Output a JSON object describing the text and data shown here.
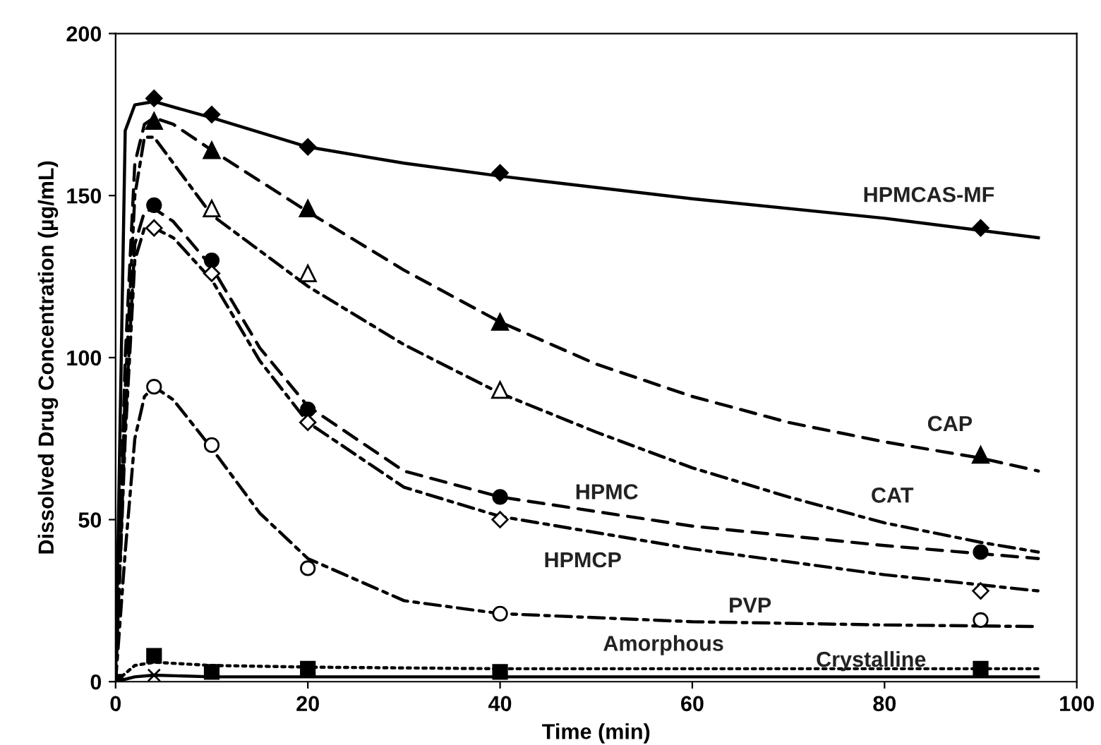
{
  "chart_data": {
    "type": "line",
    "xlabel": "Time (min)",
    "ylabel": "Dissolved Drug Concentration (µg/mL)",
    "xlim": [
      0,
      100
    ],
    "xticks": [
      0,
      20,
      40,
      60,
      80,
      100
    ],
    "ylim": [
      0,
      200
    ],
    "yticks": [
      0,
      50,
      100,
      150,
      200
    ],
    "grid": false,
    "legend": false,
    "series": [
      {
        "type": "scatter",
        "color": "#000000",
        "marker": "diamond",
        "x": [
          4,
          10,
          20,
          40,
          90
        ],
        "values": [
          180,
          175,
          165,
          157,
          140
        ]
      },
      {
        "type": "scatter",
        "color": "#000000",
        "marker": "triangle",
        "x": [
          4,
          10,
          20,
          40,
          90
        ],
        "values": [
          173,
          164,
          146,
          111,
          70
        ]
      },
      {
        "type": "scatter",
        "color": "#ffffff",
        "marker": "triangle",
        "x": [
          10,
          20,
          40
        ],
        "values": [
          146,
          126,
          90
        ]
      },
      {
        "type": "scatter",
        "color": "#000000",
        "marker": "circle",
        "x": [
          4,
          10,
          20,
          40,
          90
        ],
        "values": [
          147,
          130,
          84,
          57,
          40
        ]
      },
      {
        "type": "scatter",
        "color": "#ffffff",
        "marker": "diamond",
        "x": [
          4,
          10,
          20,
          40,
          90
        ],
        "values": [
          140,
          126,
          80,
          50,
          28
        ]
      },
      {
        "type": "scatter",
        "color": "#ffffff",
        "marker": "circle",
        "x": [
          4,
          10,
          20,
          40,
          90
        ],
        "values": [
          91,
          73,
          35,
          21,
          19
        ]
      },
      {
        "type": "scatter",
        "color": "#000000",
        "marker": "square",
        "x": [
          0,
          4,
          10,
          20,
          40,
          90
        ],
        "values": [
          0,
          8,
          3,
          4,
          3,
          4
        ]
      },
      {
        "type": "scatter",
        "color": "#000000",
        "marker": "cross",
        "x": [
          4
        ],
        "values": [
          2
        ]
      },
      {
        "name": "HPMCAS-MF",
        "color": "#000000",
        "line_style": "solid",
        "x": [
          0,
          1,
          2,
          4,
          10,
          20,
          30,
          40,
          60,
          80,
          96
        ],
        "values": [
          0,
          170,
          178,
          179,
          174,
          165,
          160,
          156,
          149,
          143,
          137
        ]
      },
      {
        "name": "CAP",
        "color": "#000000",
        "line_style": "dashed",
        "x": [
          0,
          1,
          2,
          3,
          4,
          6,
          10,
          20,
          30,
          40,
          50,
          60,
          70,
          80,
          90,
          96
        ],
        "values": [
          0,
          100,
          160,
          172,
          174,
          172,
          164,
          145,
          127,
          111,
          98,
          88,
          80,
          74,
          69,
          65
        ]
      },
      {
        "name": "CAT",
        "color": "#000000",
        "line_style": "dashdot",
        "x": [
          0,
          1,
          2,
          3,
          4,
          6,
          10,
          20,
          30,
          40,
          50,
          60,
          70,
          80,
          90,
          96
        ],
        "values": [
          0,
          90,
          150,
          168,
          168,
          160,
          144,
          122,
          104,
          89,
          77,
          66,
          57,
          49,
          43,
          40
        ]
      },
      {
        "name": "HPMC",
        "color": "#000000",
        "line_style": "dashed",
        "x": [
          0,
          1,
          2,
          3,
          4,
          6,
          10,
          15,
          20,
          30,
          40,
          60,
          80,
          96
        ],
        "values": [
          0,
          80,
          135,
          145,
          146,
          142,
          128,
          103,
          85,
          65,
          57,
          48,
          42,
          38
        ]
      },
      {
        "name": "HPMCP",
        "color": "#000000",
        "line_style": "dashdot",
        "x": [
          0,
          1,
          2,
          3,
          4,
          6,
          10,
          15,
          20,
          30,
          40,
          60,
          80,
          96
        ],
        "values": [
          0,
          75,
          130,
          140,
          140,
          137,
          124,
          99,
          80,
          60,
          51,
          41,
          33,
          28
        ]
      },
      {
        "name": "PVP",
        "color": "#000000",
        "line_style": "dashdot",
        "x": [
          0,
          1,
          2,
          3,
          4,
          6,
          10,
          15,
          20,
          30,
          40,
          60,
          80,
          96
        ],
        "values": [
          0,
          40,
          75,
          88,
          91,
          87,
          72,
          52,
          38,
          25,
          21,
          18.5,
          17.5,
          17
        ]
      },
      {
        "name": "Amorphous",
        "color": "#000000",
        "line_style": "dotted",
        "x": [
          0,
          2,
          4,
          10,
          20,
          40,
          96
        ],
        "values": [
          0,
          5,
          6,
          5,
          4.5,
          4,
          4
        ]
      },
      {
        "name": "Crystalline",
        "color": "#000000",
        "line_style": "solid",
        "x": [
          0,
          2,
          4,
          10,
          96
        ],
        "values": [
          0,
          1.5,
          2,
          1.5,
          1.5
        ]
      }
    ]
  }
}
